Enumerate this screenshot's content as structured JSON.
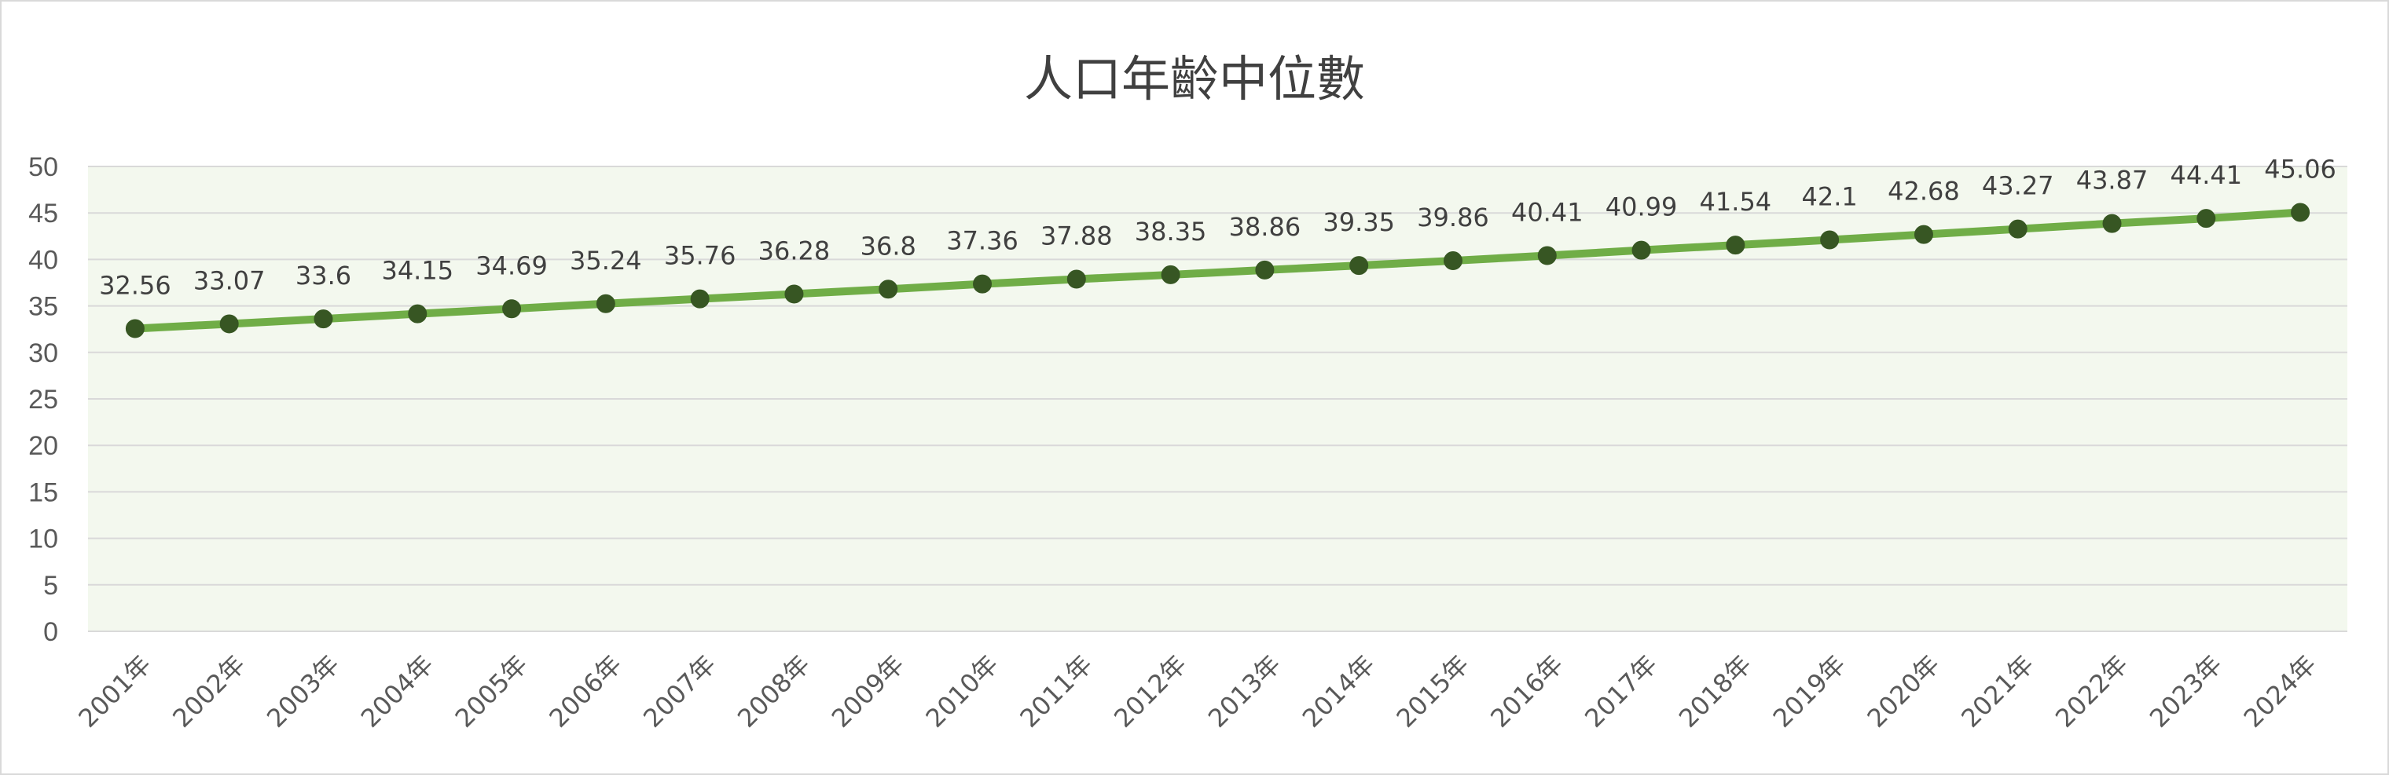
{
  "chart_data": {
    "type": "line",
    "title": "人口年齡中位數",
    "xlabel": "",
    "ylabel": "",
    "categories": [
      "2001年",
      "2002年",
      "2003年",
      "2004年",
      "2005年",
      "2006年",
      "2007年",
      "2008年",
      "2009年",
      "2010年",
      "2011年",
      "2012年",
      "2013年",
      "2014年",
      "2015年",
      "2016年",
      "2017年",
      "2018年",
      "2019年",
      "2020年",
      "2021年",
      "2022年",
      "2023年",
      "2024年"
    ],
    "values": [
      32.56,
      33.07,
      33.6,
      34.15,
      34.69,
      35.24,
      35.76,
      36.28,
      36.8,
      37.36,
      37.88,
      38.35,
      38.86,
      39.35,
      39.86,
      40.41,
      40.99,
      41.54,
      42.1,
      42.68,
      43.27,
      43.87,
      44.41,
      45.06
    ],
    "data_labels": [
      "32.56",
      "33.07",
      "33.6",
      "34.15",
      "34.69",
      "35.24",
      "35.76",
      "36.28",
      "36.8",
      "37.36",
      "37.88",
      "38.35",
      "38.86",
      "39.35",
      "39.86",
      "40.41",
      "40.99",
      "41.54",
      "42.1",
      "42.68",
      "43.27",
      "43.87",
      "44.41",
      "45.06"
    ],
    "ylim": [
      0,
      50
    ],
    "yticks": [
      "0",
      "5",
      "10",
      "15",
      "20",
      "25",
      "30",
      "35",
      "40",
      "45",
      "50"
    ],
    "grid": true,
    "legend": "none",
    "colors": {
      "line": "#70ad47",
      "marker": "#375623",
      "plot_background": "#f3f8ee",
      "gridline": "#d9d9d9"
    }
  }
}
